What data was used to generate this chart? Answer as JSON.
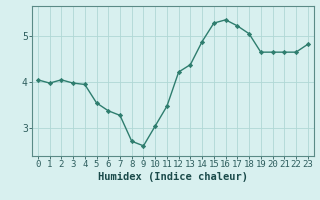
{
  "title": "",
  "xlabel": "Humidex (Indice chaleur)",
  "ylabel": "",
  "x": [
    0,
    1,
    2,
    3,
    4,
    5,
    6,
    7,
    8,
    9,
    10,
    11,
    12,
    13,
    14,
    15,
    16,
    17,
    18,
    19,
    20,
    21,
    22,
    23
  ],
  "y": [
    4.05,
    3.98,
    4.05,
    3.98,
    3.95,
    3.55,
    3.38,
    3.28,
    2.72,
    2.62,
    3.05,
    3.48,
    4.22,
    4.38,
    4.88,
    5.28,
    5.35,
    5.22,
    5.05,
    4.65,
    4.65,
    4.65,
    4.65,
    4.82
  ],
  "line_color": "#2e7d6e",
  "marker": "D",
  "marker_size": 2.2,
  "bg_color": "#d8f0ef",
  "grid_color": "#b0d8d5",
  "axes_color": "#5a8a86",
  "tick_color": "#2e5e5e",
  "label_color": "#1a4a4a",
  "ylim": [
    2.4,
    5.65
  ],
  "xlim": [
    -0.5,
    23.5
  ],
  "yticks": [
    3,
    4,
    5
  ],
  "xticks": [
    0,
    1,
    2,
    3,
    4,
    5,
    6,
    7,
    8,
    9,
    10,
    11,
    12,
    13,
    14,
    15,
    16,
    17,
    18,
    19,
    20,
    21,
    22,
    23
  ],
  "xlabel_fontsize": 7.5,
  "tick_fontsize": 6.5,
  "ytick_fontsize": 7.0,
  "linewidth": 1.0
}
